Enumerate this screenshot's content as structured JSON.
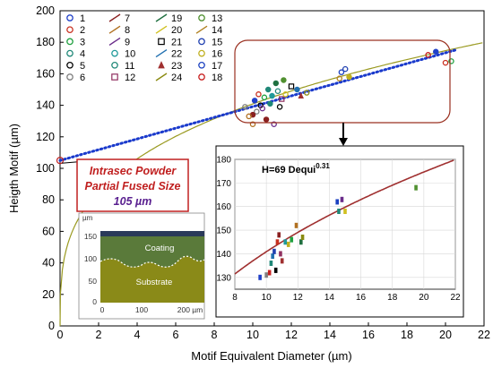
{
  "chart_data": [
    {
      "type": "scatter",
      "xlabel": "Motif Equivalent Diameter (µm)",
      "ylabel": "Heigth Motif (µm)",
      "xlim": [
        0,
        22
      ],
      "ylim": [
        0,
        200
      ],
      "x_ticks": [
        "0",
        "2",
        "4",
        "6",
        "8",
        "10",
        "12",
        "14",
        "16",
        "18",
        "20",
        "22"
      ],
      "y_ticks": [
        "0",
        "20",
        "40",
        "60",
        "80",
        "100",
        "120",
        "140",
        "160",
        "180",
        "200"
      ],
      "legend_placement": "top-left",
      "legend": [
        {
          "label": "1",
          "color": "#2040c8",
          "marker": "o"
        },
        {
          "label": "2",
          "color": "#c83020",
          "marker": "o"
        },
        {
          "label": "3",
          "color": "#20a040",
          "marker": "o"
        },
        {
          "label": "4",
          "color": "#208878",
          "marker": "o"
        },
        {
          "label": "5",
          "color": "#000000",
          "marker": "o"
        },
        {
          "label": "6",
          "color": "#808080",
          "marker": "o"
        },
        {
          "label": "7",
          "color": "#8a2020",
          "marker": "line"
        },
        {
          "label": "8",
          "color": "#b07020",
          "marker": "line"
        },
        {
          "label": "9",
          "color": "#6a2c8a",
          "marker": "line"
        },
        {
          "label": "10",
          "color": "#209a9a",
          "marker": "o"
        },
        {
          "label": "11",
          "color": "#208878",
          "marker": "o"
        },
        {
          "label": "12",
          "color": "#903060",
          "marker": "s"
        },
        {
          "label": "19",
          "color": "#207040",
          "marker": "line"
        },
        {
          "label": "20",
          "color": "#d0c020",
          "marker": "line"
        },
        {
          "label": "21",
          "color": "#000000",
          "marker": "s"
        },
        {
          "label": "22",
          "color": "#2070b0",
          "marker": "line"
        },
        {
          "label": "23",
          "color": "#a03030",
          "marker": "^"
        },
        {
          "label": "24",
          "color": "#8a8a10",
          "marker": "line"
        },
        {
          "label": "13",
          "color": "#509030",
          "marker": "o"
        },
        {
          "label": "14",
          "color": "#b08020",
          "marker": "line"
        },
        {
          "label": "15",
          "color": "#2040b0",
          "marker": "o"
        },
        {
          "label": "16",
          "color": "#c0b020",
          "marker": "o"
        },
        {
          "label": "17",
          "color": "#1a40c0",
          "marker": "o"
        },
        {
          "label": "18",
          "color": "#c82020",
          "marker": "o"
        }
      ],
      "series": [
        {
          "values": [
            [
              10.1,
              143
            ],
            [
              10.3,
              147
            ],
            [
              10.6,
              145
            ],
            [
              10.8,
              150
            ],
            [
              10.4,
              140
            ],
            [
              10.2,
              136
            ],
            [
              10.0,
              134
            ],
            [
              9.8,
              133
            ],
            [
              10.5,
              138
            ],
            [
              11.0,
              146
            ],
            [
              11.3,
              149
            ],
            [
              11.5,
              144
            ],
            [
              11.2,
              154
            ],
            [
              11.7,
              147
            ],
            [
              12.0,
              152
            ],
            [
              12.3,
              150
            ],
            [
              12.5,
              146
            ],
            [
              12.8,
              148
            ],
            [
              11.6,
              156
            ],
            [
              14.5,
              157
            ],
            [
              14.8,
              163
            ],
            [
              15.0,
              158
            ],
            [
              14.6,
              161
            ],
            [
              19.1,
              172
            ],
            [
              19.5,
              174
            ],
            [
              20.0,
              167
            ],
            [
              20.3,
              168
            ],
            [
              10.9,
              141
            ],
            [
              11.4,
              139
            ],
            [
              9.6,
              139
            ],
            [
              10.7,
              131
            ],
            [
              10.0,
              128
            ],
            [
              11.1,
              128
            ]
          ]
        }
      ],
      "annotations": {
        "powder_box": [
          "Intrasec Powder",
          "Partial Fused Size",
          "105 µm"
        ],
        "powder_point": {
          "x": 0,
          "y": 105
        }
      }
    },
    {
      "type": "scatter",
      "title": "H=69 Dequi",
      "title_exponent": "0.31",
      "xlim": [
        8,
        22
      ],
      "ylim": [
        125,
        180
      ],
      "x_ticks": [
        "8",
        "10",
        "12",
        "14",
        "16",
        "18",
        "20",
        "22"
      ],
      "y_ticks": [
        "130",
        "140",
        "150",
        "160",
        "170",
        "180"
      ],
      "grid": true,
      "series": [
        {
          "values": [
            [
              9.6,
              130
            ],
            [
              10.0,
              131
            ],
            [
              10.3,
              136
            ],
            [
              10.4,
              139
            ],
            [
              10.5,
              141
            ],
            [
              10.7,
              145
            ],
            [
              10.8,
              148
            ],
            [
              10.9,
              140
            ],
            [
              11.0,
              137
            ],
            [
              11.4,
              144
            ],
            [
              11.6,
              146
            ],
            [
              11.9,
              152
            ],
            [
              12.2,
              145
            ],
            [
              12.3,
              147
            ],
            [
              14.5,
              162
            ],
            [
              14.6,
              158
            ],
            [
              14.8,
              163
            ],
            [
              15.0,
              158
            ],
            [
              19.5,
              168
            ],
            [
              10.2,
              132
            ],
            [
              10.6,
              133
            ],
            [
              11.2,
              145
            ]
          ]
        }
      ]
    }
  ],
  "inset_image": {
    "label_um": "µm",
    "y_ticks": [
      "150",
      "100",
      "50",
      "0"
    ],
    "x_ticks": [
      "0",
      "100",
      "200 µm"
    ],
    "coating": "Coating",
    "substrate": "Substrate"
  }
}
